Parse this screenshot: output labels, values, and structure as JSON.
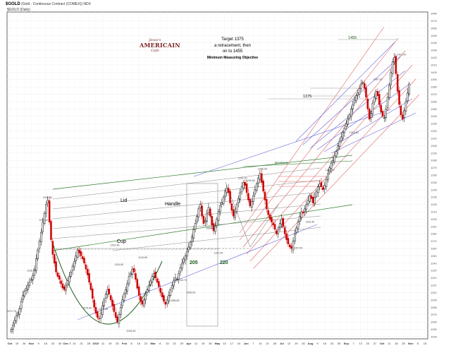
{
  "header": {
    "symbol": "$GOLD",
    "description": "(Gold - Continuous Contract (COMEX)) NDX",
    "overlay": "$GOLD (Daily)"
  },
  "logo": {
    "top": "Jesse's",
    "main": "AMERICAIN",
    "bottom": "Cafe"
  },
  "target_note": {
    "line1": "Target 1375",
    "line2": "a retracement, then",
    "line3": "on to 1455",
    "line4": "Minimum Measuring Objective"
  },
  "annotations": {
    "lid": "Lid",
    "handle": "Handle",
    "cup": "Cup",
    "n205": "205",
    "n220": "220",
    "t1375": "1375",
    "t1455": "1455",
    "breakout": "Breakout"
  },
  "colors": {
    "up": "#000000",
    "down": "#cc0000",
    "cup": "#1a5c1a",
    "lid": "#2e7d2e",
    "fan_red": "#e06666",
    "fan_blue": "#6666dd"
  },
  "chart_data": {
    "type": "candlestick",
    "title": "$GOLD (Gold - Continuous Contract (COMEX))",
    "x_tick_labels": [
      "Oct",
      "19",
      "26",
      "Nov",
      "9",
      "16",
      "23",
      "30",
      "Dec 7",
      "14",
      "21",
      "28",
      "2010",
      "11",
      "19",
      "25",
      "Feb",
      "8",
      "16",
      "22",
      "Mar",
      "8",
      "15",
      "22",
      "29",
      "Apr",
      "12",
      "19",
      "26",
      "May",
      "10",
      "17",
      "24",
      "Jun",
      "7",
      "14",
      "21",
      "28",
      "Jul",
      "12",
      "19",
      "26",
      "Aug",
      "9",
      "16",
      "23",
      "30",
      "Sep",
      "7",
      "13",
      "20",
      "27",
      "Oct",
      "11",
      "18",
      "25",
      "Nov",
      "8",
      "15"
    ],
    "y_tick_labels": [
      1040,
      1050,
      1060,
      1070,
      1080,
      1090,
      1100,
      1110,
      1120,
      1130,
      1140,
      1150,
      1160,
      1170,
      1180,
      1190,
      1200,
      1210,
      1220,
      1230,
      1240,
      1250,
      1260,
      1270,
      1280,
      1290,
      1300,
      1310,
      1320,
      1330,
      1340,
      1350,
      1360,
      1370,
      1380,
      1390,
      1400,
      1410,
      1420,
      1430,
      1440,
      1450,
      1460,
      1470,
      1480
    ],
    "ylim": [
      1037,
      1482
    ],
    "price_labels": [
      1071.7,
      1226.4,
      1195.5,
      1126.8,
      1075.9,
      1161.6,
      1074.6,
      1044.6,
      1134.8,
      1144.6,
      1085.8,
      1113.7,
      1096.9,
      1184.6,
      1151.0,
      1249.6,
      1265.3,
      1252.7,
      1157.5,
      1193.4,
      1185.9,
      1263.9,
      1314.6,
      1387.1,
      1421.0
    ],
    "closes": [
      1050,
      1056,
      1062,
      1068,
      1072,
      1078,
      1088,
      1096,
      1102,
      1106,
      1110,
      1114,
      1118,
      1123,
      1132,
      1146,
      1158,
      1170,
      1182,
      1196,
      1208,
      1220,
      1226,
      1196,
      1172,
      1152,
      1140,
      1128,
      1122,
      1118,
      1112,
      1106,
      1104,
      1110,
      1116,
      1122,
      1128,
      1136,
      1142,
      1150,
      1158,
      1154,
      1150,
      1146,
      1140,
      1132,
      1124,
      1114,
      1104,
      1092,
      1080,
      1072,
      1066,
      1064,
      1072,
      1082,
      1090,
      1098,
      1104,
      1098,
      1090,
      1082,
      1074,
      1066,
      1060,
      1070,
      1080,
      1090,
      1098,
      1104,
      1112,
      1122,
      1126,
      1132,
      1128,
      1118,
      1106,
      1096,
      1088,
      1084,
      1090,
      1098,
      1104,
      1110,
      1116,
      1122,
      1126,
      1120,
      1114,
      1108,
      1100,
      1094,
      1088,
      1084,
      1090,
      1096,
      1104,
      1110,
      1116,
      1120,
      1118,
      1126,
      1134,
      1140,
      1146,
      1150,
      1156,
      1162,
      1168,
      1176,
      1186,
      1194,
      1204,
      1214,
      1220,
      1204,
      1194,
      1198,
      1208,
      1216,
      1204,
      1192,
      1184,
      1190,
      1200,
      1210,
      1218,
      1222,
      1230,
      1238,
      1242,
      1236,
      1222,
      1212,
      1204,
      1210,
      1220,
      1228,
      1236,
      1244,
      1250,
      1246,
      1236,
      1226,
      1218,
      1224,
      1232,
      1240,
      1248,
      1256,
      1262,
      1250,
      1238,
      1226,
      1214,
      1206,
      1200,
      1196,
      1192,
      1186,
      1180,
      1186,
      1194,
      1200,
      1190,
      1180,
      1172,
      1166,
      1162,
      1160,
      1170,
      1180,
      1188,
      1196,
      1204,
      1210,
      1208,
      1214,
      1220,
      1226,
      1232,
      1228,
      1222,
      1230,
      1238,
      1244,
      1248,
      1244,
      1240,
      1246,
      1254,
      1262,
      1270,
      1276,
      1280,
      1286,
      1292,
      1300,
      1306,
      1312,
      1318,
      1324,
      1330,
      1336,
      1342,
      1350,
      1356,
      1362,
      1368,
      1372,
      1378,
      1384,
      1386,
      1378,
      1366,
      1350,
      1336,
      1344,
      1358,
      1366,
      1374,
      1368,
      1356,
      1346,
      1340,
      1338,
      1350,
      1366,
      1382,
      1400,
      1414,
      1420,
      1398,
      1374,
      1356,
      1342,
      1336,
      1348,
      1360,
      1372,
      1384
    ]
  }
}
